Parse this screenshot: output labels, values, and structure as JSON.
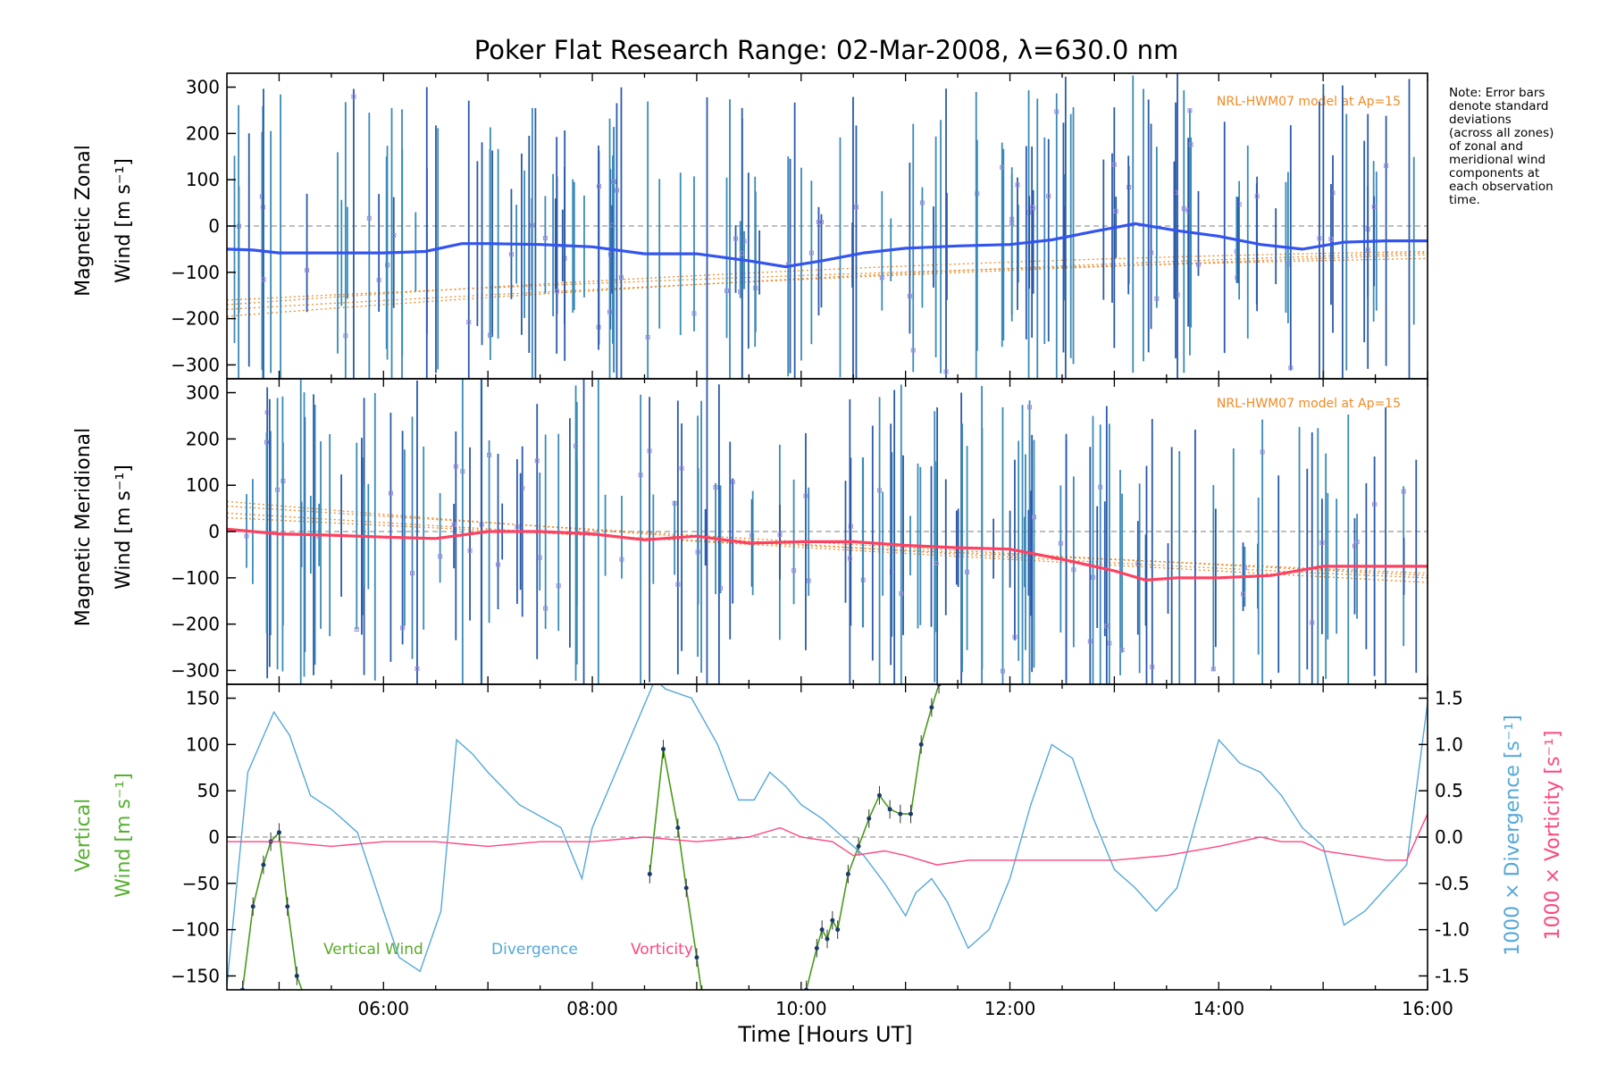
{
  "chart_data": [
    {
      "type": "line",
      "title": "Poker Flat Research Range: 02-Mar-2008, λ=630.0 nm",
      "note": [
        "Note: Error bars",
        "denote standard",
        "deviations",
        "(across all zones)",
        "of zonal and",
        "meridional wind",
        "components at",
        "each observation",
        "time."
      ],
      "ylabel": [
        "Magnetic Zonal",
        "Wind [m s⁻¹]"
      ],
      "ylim": [
        -330,
        330
      ],
      "yticks": [
        300,
        200,
        100,
        0,
        -100,
        -200,
        -300
      ],
      "xlim": [
        4.5,
        16.0
      ],
      "model_label": "NRL-HWM07 model at Ap=15",
      "series": [
        {
          "color": "#3355ee",
          "x": [
            4.5,
            4.75,
            5.0,
            5.5,
            6.0,
            6.4,
            6.75,
            7.0,
            7.5,
            8.0,
            8.5,
            9.0,
            9.5,
            9.85,
            10.2,
            10.6,
            11.0,
            11.5,
            12.0,
            12.4,
            12.8,
            13.2,
            13.6,
            14.0,
            14.4,
            14.8,
            15.2,
            15.6,
            16.0
          ],
          "y": [
            -50,
            -52,
            -58,
            -58,
            -58,
            -55,
            -38,
            -38,
            -40,
            -45,
            -60,
            -60,
            -75,
            -88,
            -75,
            -58,
            -48,
            -43,
            -40,
            -30,
            -12,
            5,
            -10,
            -22,
            -40,
            -50,
            -35,
            -32,
            -32
          ],
          "error_bars": "present"
        }
      ]
    },
    {
      "type": "line",
      "ylabel": [
        "Magnetic Meridional",
        "Wind [m s⁻¹]"
      ],
      "ylim": [
        -330,
        330
      ],
      "yticks": [
        300,
        200,
        100,
        0,
        -100,
        -200,
        -300
      ],
      "xlim": [
        4.5,
        16.0
      ],
      "model_label": "NRL-HWM07 model at Ap=15",
      "series": [
        {
          "color": "#ff4060",
          "x": [
            4.5,
            5.0,
            5.5,
            6.0,
            6.5,
            7.0,
            7.5,
            8.0,
            8.5,
            9.0,
            9.5,
            10.0,
            10.5,
            11.0,
            11.5,
            12.0,
            12.5,
            13.0,
            13.3,
            13.6,
            14.0,
            14.5,
            15.0,
            15.5,
            16.0
          ],
          "y": [
            5,
            -5,
            -8,
            -12,
            -15,
            0,
            0,
            -5,
            -18,
            -10,
            -25,
            -22,
            -22,
            -30,
            -35,
            -38,
            -60,
            -85,
            -105,
            -100,
            -100,
            -95,
            -75,
            -75,
            -75
          ],
          "error_bars": "present"
        }
      ]
    },
    {
      "type": "line",
      "ylabel": [
        "Vertical",
        "Wind [m s⁻¹]"
      ],
      "ylim": [
        -165,
        165
      ],
      "yticks": [
        150,
        100,
        50,
        0,
        -50,
        -100,
        -150
      ],
      "ylabel_right": [
        "1000 × Divergence [s⁻¹]",
        "1000 × Vorticity [s⁻¹]"
      ],
      "ylim_right": [
        -1.65,
        1.65
      ],
      "yticks_right": [
        1.5,
        1.0,
        0.5,
        0.0,
        -0.5,
        -1.0,
        -1.5
      ],
      "xlabel": "Time [Hours UT]",
      "xlim": [
        4.5,
        16.0
      ],
      "xticks": [
        "06:00",
        "08:00",
        "10:00",
        "12:00",
        "14:00",
        "16:00"
      ],
      "xtick_values": [
        6,
        8,
        10,
        12,
        14,
        16
      ],
      "legend": [
        "Vertical Wind",
        "Divergence",
        "Vorticity"
      ],
      "series": [
        {
          "name": "Vertical Wind",
          "color": "#4a9a1a",
          "axis": "left",
          "segments": [
            {
              "x": [
                4.65,
                4.75,
                4.85,
                4.92,
                5.0,
                5.08,
                5.17,
                5.25
              ],
              "y": [
                -165,
                -75,
                -30,
                -5,
                5,
                -75,
                -150,
                -175
              ]
            },
            {
              "x": [
                8.55,
                8.68,
                8.82,
                8.9,
                9.0,
                9.05
              ],
              "y": [
                -40,
                95,
                10,
                -55,
                -130,
                -170
              ]
            },
            {
              "x": [
                10.05,
                10.15,
                10.2,
                10.25,
                10.3,
                10.35,
                10.45,
                10.55,
                10.65,
                10.75,
                10.85,
                10.95,
                11.05,
                11.15,
                11.25,
                11.32
              ],
              "y": [
                -165,
                -120,
                -100,
                -110,
                -90,
                -100,
                -40,
                -10,
                20,
                45,
                30,
                25,
                25,
                100,
                140,
                165
              ]
            }
          ]
        },
        {
          "name": "Divergence",
          "color": "#55a8d8",
          "axis": "right",
          "x": [
            4.5,
            4.7,
            4.95,
            5.1,
            5.3,
            5.5,
            5.75,
            6.0,
            6.15,
            6.35,
            6.55,
            6.7,
            6.85,
            7.0,
            7.3,
            7.7,
            7.9,
            8.0,
            8.6,
            8.7,
            8.95,
            9.2,
            9.4,
            9.55,
            9.7,
            9.85,
            10.0,
            10.2,
            10.4,
            10.6,
            10.8,
            11.0,
            11.1,
            11.25,
            11.4,
            11.6,
            11.8,
            12.0,
            12.2,
            12.4,
            12.6,
            12.8,
            13.0,
            13.2,
            13.4,
            13.6,
            13.8,
            14.0,
            14.2,
            14.4,
            14.6,
            14.8,
            15.0,
            15.2,
            15.4,
            15.6,
            15.8,
            16.0
          ],
          "y": [
            -1.6,
            0.7,
            1.35,
            1.1,
            0.45,
            0.3,
            0.05,
            -0.8,
            -1.3,
            -1.45,
            -0.8,
            1.05,
            0.9,
            0.7,
            0.35,
            0.1,
            -0.45,
            0.1,
            1.7,
            1.6,
            1.5,
            1.0,
            0.4,
            0.4,
            0.7,
            0.55,
            0.35,
            0.2,
            0.0,
            -0.2,
            -0.5,
            -0.85,
            -0.6,
            -0.45,
            -0.7,
            -1.2,
            -1.0,
            -0.45,
            0.35,
            1.0,
            0.85,
            0.2,
            -0.35,
            -0.55,
            -0.8,
            -0.55,
            0.25,
            1.05,
            0.8,
            0.7,
            0.45,
            0.1,
            -0.1,
            -0.95,
            -0.8,
            -0.55,
            -0.3,
            1.45
          ]
        },
        {
          "name": "Vorticity",
          "color": "#ff4680",
          "axis": "right",
          "x": [
            4.5,
            5.0,
            5.5,
            6.0,
            6.5,
            7.0,
            7.5,
            8.0,
            8.5,
            9.0,
            9.5,
            9.8,
            10.0,
            10.3,
            10.5,
            10.8,
            11.0,
            11.3,
            11.6,
            12.0,
            12.5,
            13.0,
            13.5,
            14.0,
            14.4,
            14.6,
            14.8,
            15.0,
            15.3,
            15.6,
            15.8,
            16.0
          ],
          "y": [
            -0.05,
            -0.05,
            -0.1,
            -0.05,
            -0.05,
            -0.1,
            -0.05,
            -0.05,
            0.0,
            -0.05,
            0.0,
            0.1,
            0.0,
            -0.05,
            -0.2,
            -0.15,
            -0.2,
            -0.3,
            -0.25,
            -0.25,
            -0.25,
            -0.25,
            -0.2,
            -0.1,
            0.0,
            -0.05,
            -0.05,
            -0.15,
            -0.2,
            -0.25,
            -0.25,
            0.25
          ]
        }
      ]
    }
  ]
}
